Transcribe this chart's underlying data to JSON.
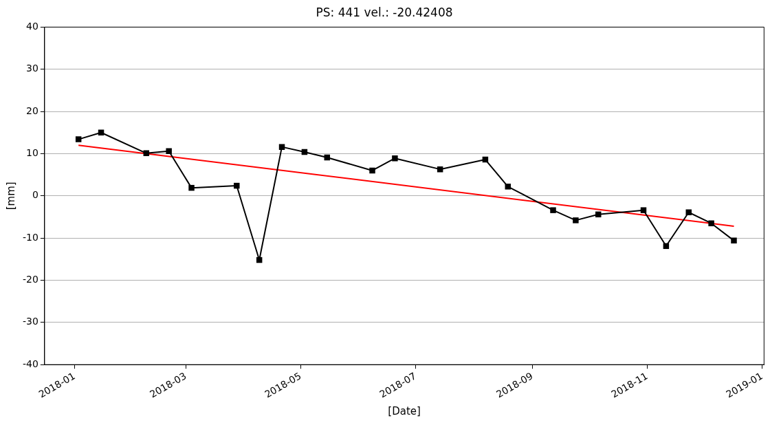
{
  "chart_data": {
    "type": "line",
    "title": "PS: 441 vel.: -20.42408",
    "xlabel": "[Date]",
    "ylabel": "[mm]",
    "xlim": [
      "2017-12-16",
      "2019-01-02"
    ],
    "xticks": [
      "2018-01",
      "2018-03",
      "2018-05",
      "2018-07",
      "2018-09",
      "2018-11",
      "2019-01"
    ],
    "ylim": [
      -40,
      40
    ],
    "yticks": [
      -40,
      -30,
      -20,
      -10,
      0,
      10,
      20,
      30,
      40
    ],
    "grid": "y",
    "legend": false,
    "series": [
      {
        "color": "#000000",
        "marker": "square",
        "line_style": "solid",
        "x": [
          "2018-01-03",
          "2018-01-15",
          "2018-02-08",
          "2018-02-20",
          "2018-03-04",
          "2018-03-28",
          "2018-04-09",
          "2018-04-21",
          "2018-05-03",
          "2018-05-15",
          "2018-06-08",
          "2018-06-20",
          "2018-07-14",
          "2018-08-07",
          "2018-08-19",
          "2018-09-12",
          "2018-09-24",
          "2018-10-06",
          "2018-10-30",
          "2018-11-11",
          "2018-11-23",
          "2018-12-05",
          "2018-12-17"
        ],
        "values": [
          13.4,
          15.0,
          10.1,
          10.6,
          1.9,
          2.4,
          -15.2,
          11.6,
          10.4,
          9.1,
          6.0,
          8.9,
          6.3,
          8.6,
          2.2,
          -3.4,
          -5.8,
          -4.4,
          -3.4,
          -11.9,
          -3.9,
          -6.5,
          -10.6
        ]
      },
      {
        "type": "line",
        "color": "#ff0000",
        "marker": "none",
        "line_style": "solid",
        "x": [
          "2018-01-03",
          "2018-12-17"
        ],
        "values": [
          12.0,
          -7.2
        ]
      }
    ]
  }
}
